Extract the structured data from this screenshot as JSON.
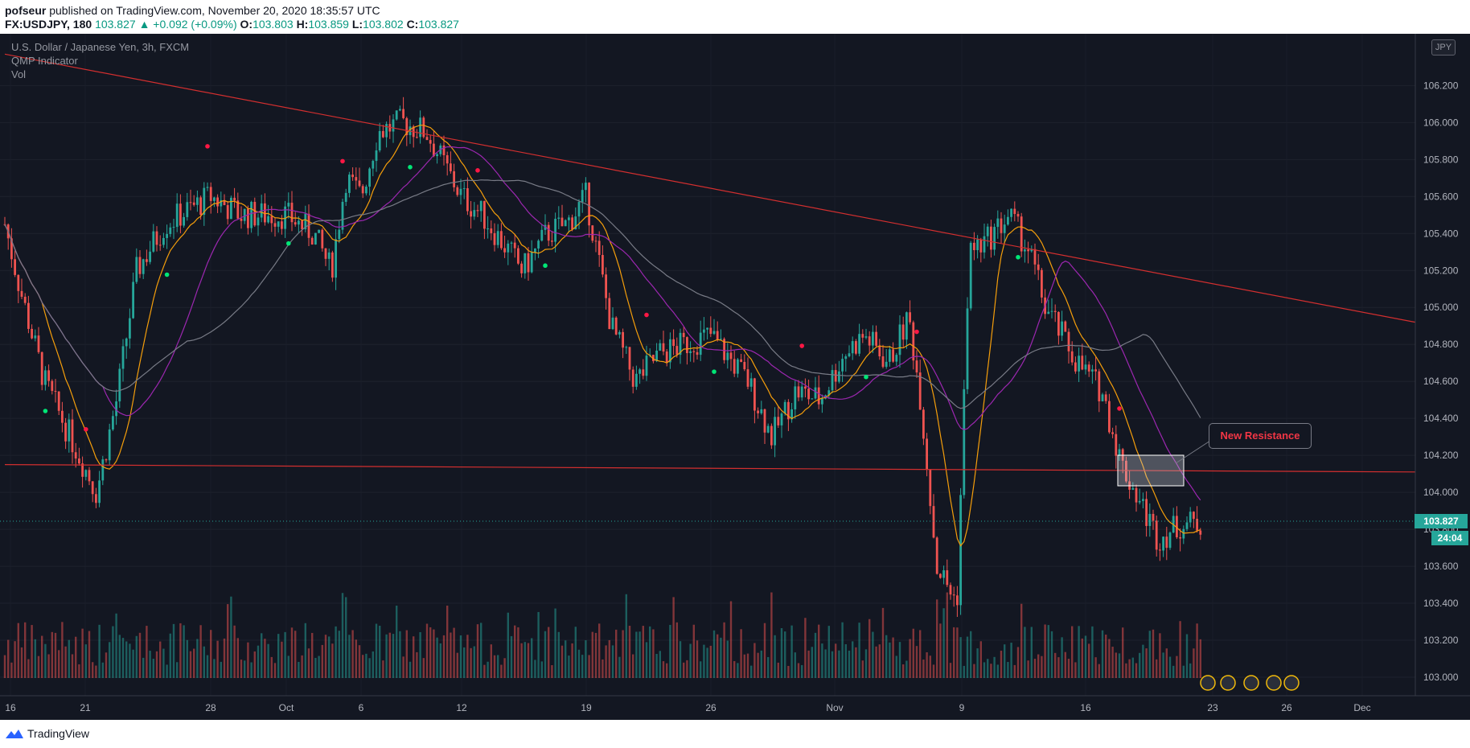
{
  "header": {
    "user": "pofseur",
    "published_text": "published on TradingView.com, November 20, 2020 18:35:57 UTC",
    "symbol": "FX:USDJPY, 180",
    "last": "103.827",
    "change": "▲ +0.092 (+0.09%)",
    "o_label": "O:",
    "o": "103.803",
    "h_label": "H:",
    "h": "103.859",
    "l_label": "L:",
    "l": "103.802",
    "c_label": "C:",
    "c": "103.827"
  },
  "legend": {
    "title": "U.S. Dollar / Japanese Yen, 3h, FXCM",
    "indicator": "QMP Indicator",
    "volume": "Vol"
  },
  "currency_badge": "JPY",
  "annotation": "New Resistance",
  "price_label": "103.827",
  "countdown_label": "24:04",
  "footer": {
    "brand": "TradingView"
  },
  "colors": {
    "background": "#131722",
    "up": "#26a69a",
    "down": "#ef5350",
    "trendline": "#d32f2f",
    "ma_fast": "#f59e0b",
    "ma_mid": "#9c27b0",
    "ma_slow": "#787b86",
    "signal_buy": "#00e676",
    "signal_sell": "#ff1744"
  },
  "chart_data": {
    "type": "candlestick",
    "yticks": [
      "103.000",
      "103.200",
      "103.400",
      "103.600",
      "103.800",
      "104.000",
      "104.200",
      "104.400",
      "104.600",
      "104.800",
      "105.000",
      "105.200",
      "105.400",
      "105.600",
      "105.800",
      "106.000",
      "106.200"
    ],
    "xticks": [
      "16",
      "21",
      "28",
      "Oct",
      "6",
      "12",
      "19",
      "26",
      "Nov",
      "9",
      "16",
      "23",
      "26",
      "Dec"
    ],
    "ylim": [
      102.9,
      106.48
    ],
    "last_price": 103.827,
    "close_path": [
      {
        "x": "16",
        "y": 105.45
      },
      {
        "x": "18",
        "y": 105.1
      },
      {
        "x": "19",
        "y": 104.6
      },
      {
        "x": "21",
        "y": 104.0
      },
      {
        "x": "22",
        "y": 104.5
      },
      {
        "x": "23",
        "y": 105.2
      },
      {
        "x": "25",
        "y": 105.45
      },
      {
        "x": "28",
        "y": 105.6
      },
      {
        "x": "29",
        "y": 105.5
      },
      {
        "x": "Oct",
        "y": 105.5
      },
      {
        "x": "2",
        "y": 105.4
      },
      {
        "x": "3",
        "y": 105.2
      },
      {
        "x": "5",
        "y": 105.7
      },
      {
        "x": "6",
        "y": 105.6
      },
      {
        "x": "7",
        "y": 105.95
      },
      {
        "x": "8",
        "y": 106.0
      },
      {
        "x": "9",
        "y": 105.95
      },
      {
        "x": "12",
        "y": 105.6
      },
      {
        "x": "13",
        "y": 105.5
      },
      {
        "x": "14",
        "y": 105.35
      },
      {
        "x": "15",
        "y": 105.2
      },
      {
        "x": "16",
        "y": 105.4
      },
      {
        "x": "19",
        "y": 105.45
      },
      {
        "x": "20",
        "y": 105.6
      },
      {
        "x": "21",
        "y": 104.9
      },
      {
        "x": "22",
        "y": 104.6
      },
      {
        "x": "23",
        "y": 104.75
      },
      {
        "x": "26",
        "y": 104.85
      },
      {
        "x": "27",
        "y": 104.6
      },
      {
        "x": "28",
        "y": 104.3
      },
      {
        "x": "29",
        "y": 104.55
      },
      {
        "x": "30",
        "y": 104.5
      },
      {
        "x": "Nov",
        "y": 104.75
      },
      {
        "x": "2",
        "y": 104.85
      },
      {
        "x": "3",
        "y": 104.7
      },
      {
        "x": "4",
        "y": 104.95
      },
      {
        "x": "5",
        "y": 104.5
      },
      {
        "x": "6",
        "y": 103.6
      },
      {
        "x": "9",
        "y": 103.4
      },
      {
        "x": "9b",
        "y": 105.3
      },
      {
        "x": "10",
        "y": 105.35
      },
      {
        "x": "11",
        "y": 105.5
      },
      {
        "x": "12",
        "y": 105.3
      },
      {
        "x": "13",
        "y": 105.0
      },
      {
        "x": "16",
        "y": 104.7
      },
      {
        "x": "17",
        "y": 104.55
      },
      {
        "x": "18",
        "y": 104.15
      },
      {
        "x": "19",
        "y": 103.75
      },
      {
        "x": "20",
        "y": 103.83
      }
    ],
    "trendlines": [
      {
        "name": "descending resistance",
        "from": {
          "x": "16",
          "y": 106.37
        },
        "to": {
          "x": "Dec+",
          "y": 104.92
        }
      },
      {
        "name": "horizontal support",
        "from": {
          "x": "16",
          "y": 104.15
        },
        "to": {
          "x": "Dec+",
          "y": 104.11
        }
      }
    ],
    "legend_placement": "top-left"
  }
}
